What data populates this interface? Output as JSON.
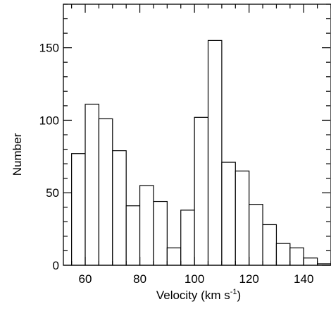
{
  "chart_data": {
    "type": "bar",
    "title": "",
    "xlabel": "Velocity (km s",
    "xlabel_superscript": "-1",
    "xlabel_suffix": ")",
    "ylabel": "Number",
    "xlim": [
      52,
      150
    ],
    "ylim": [
      0,
      180
    ],
    "grid": false,
    "legend": "none",
    "bin_width": 5,
    "x_ticks": [
      60,
      80,
      100,
      120,
      140
    ],
    "y_ticks": [
      0,
      50,
      100,
      150
    ],
    "x_minor_step": 5,
    "y_minor_step": 10,
    "bins": [
      {
        "x0": 55,
        "x1": 60,
        "value": 77
      },
      {
        "x0": 60,
        "x1": 65,
        "value": 111
      },
      {
        "x0": 65,
        "x1": 70,
        "value": 101
      },
      {
        "x0": 70,
        "x1": 75,
        "value": 79
      },
      {
        "x0": 75,
        "x1": 80,
        "value": 41
      },
      {
        "x0": 80,
        "x1": 85,
        "value": 55
      },
      {
        "x0": 85,
        "x1": 90,
        "value": 44
      },
      {
        "x0": 90,
        "x1": 95,
        "value": 12
      },
      {
        "x0": 95,
        "x1": 100,
        "value": 38
      },
      {
        "x0": 100,
        "x1": 105,
        "value": 102
      },
      {
        "x0": 105,
        "x1": 110,
        "value": 155
      },
      {
        "x0": 110,
        "x1": 115,
        "value": 71
      },
      {
        "x0": 115,
        "x1": 120,
        "value": 65
      },
      {
        "x0": 120,
        "x1": 125,
        "value": 42
      },
      {
        "x0": 125,
        "x1": 130,
        "value": 28
      },
      {
        "x0": 130,
        "x1": 135,
        "value": 15
      },
      {
        "x0": 135,
        "x1": 140,
        "value": 12
      },
      {
        "x0": 140,
        "x1": 145,
        "value": 5
      },
      {
        "x0": 145,
        "x1": 150,
        "value": 1
      }
    ],
    "colors": {
      "bar_fill": "#ffffff",
      "bar_stroke": "#000000",
      "axis": "#000000"
    }
  }
}
